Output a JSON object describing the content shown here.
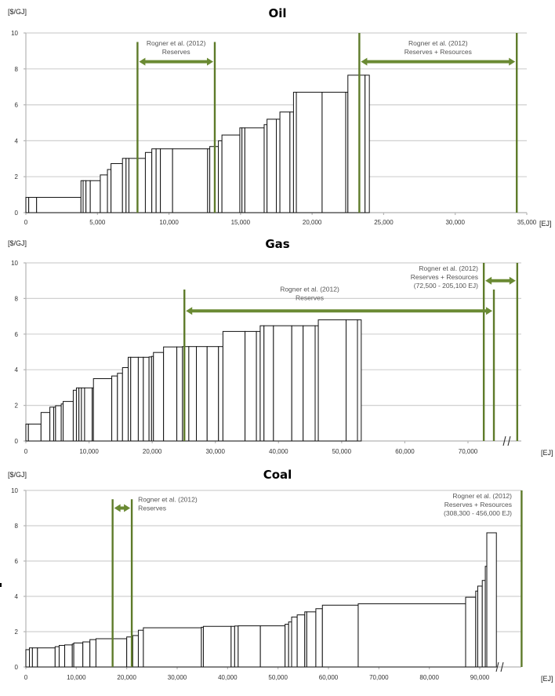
{
  "chart_data": [
    {
      "type": "bar",
      "subtype": "supply-curve (variable-width step bars)",
      "title": "Oil",
      "ylabel": "[$/GJ]",
      "xlabel": "[EJ]",
      "ylim": [
        0,
        10
      ],
      "xlim": [
        0,
        35000
      ],
      "yticks": [
        "0",
        "2",
        "4",
        "6",
        "8",
        "10"
      ],
      "xticks": [
        "0",
        "5,000",
        "10,000",
        "15,000",
        "20,000",
        "25,000",
        "30,000",
        "35,000"
      ],
      "grid": true,
      "axis_break": false,
      "steps": [
        {
          "x0": 0,
          "x1": 200,
          "y": 0.85
        },
        {
          "x0": 200,
          "x1": 750,
          "y": 0.85
        },
        {
          "x0": 750,
          "x1": 3850,
          "y": 0.85
        },
        {
          "x0": 3850,
          "x1": 4000,
          "y": 1.78
        },
        {
          "x0": 4000,
          "x1": 4200,
          "y": 1.78
        },
        {
          "x0": 4200,
          "x1": 4500,
          "y": 1.78
        },
        {
          "x0": 4500,
          "x1": 5200,
          "y": 1.78
        },
        {
          "x0": 5200,
          "x1": 5700,
          "y": 2.1
        },
        {
          "x0": 5700,
          "x1": 5950,
          "y": 2.4
        },
        {
          "x0": 5950,
          "x1": 6750,
          "y": 2.73
        },
        {
          "x0": 6750,
          "x1": 7000,
          "y": 3.02
        },
        {
          "x0": 7000,
          "x1": 7200,
          "y": 3.02
        },
        {
          "x0": 7200,
          "x1": 8350,
          "y": 3.02
        },
        {
          "x0": 8350,
          "x1": 8800,
          "y": 3.35
        },
        {
          "x0": 8800,
          "x1": 9100,
          "y": 3.55
        },
        {
          "x0": 9100,
          "x1": 9400,
          "y": 3.55
        },
        {
          "x0": 9400,
          "x1": 10250,
          "y": 3.55
        },
        {
          "x0": 10250,
          "x1": 12700,
          "y": 3.55
        },
        {
          "x0": 12700,
          "x1": 12850,
          "y": 3.55
        },
        {
          "x0": 12850,
          "x1": 13450,
          "y": 3.68
        },
        {
          "x0": 13450,
          "x1": 13700,
          "y": 4.0
        },
        {
          "x0": 13700,
          "x1": 14950,
          "y": 4.32
        },
        {
          "x0": 14950,
          "x1": 15100,
          "y": 4.72
        },
        {
          "x0": 15100,
          "x1": 15300,
          "y": 4.72
        },
        {
          "x0": 15300,
          "x1": 16650,
          "y": 4.72
        },
        {
          "x0": 16650,
          "x1": 16850,
          "y": 4.9
        },
        {
          "x0": 16850,
          "x1": 17500,
          "y": 5.2
        },
        {
          "x0": 17500,
          "x1": 17750,
          "y": 5.2
        },
        {
          "x0": 17750,
          "x1": 18450,
          "y": 5.6
        },
        {
          "x0": 18450,
          "x1": 18700,
          "y": 5.6
        },
        {
          "x0": 18700,
          "x1": 18900,
          "y": 6.7
        },
        {
          "x0": 18900,
          "x1": 20700,
          "y": 6.7
        },
        {
          "x0": 20700,
          "x1": 22350,
          "y": 6.7
        },
        {
          "x0": 22350,
          "x1": 22500,
          "y": 6.7
        },
        {
          "x0": 22500,
          "x1": 23700,
          "y": 7.65
        },
        {
          "x0": 23700,
          "x1": 24000,
          "y": 7.65
        }
      ],
      "markers": [
        {
          "x": 7800,
          "top": 9.5
        },
        {
          "x": 13200,
          "top": 9.5
        },
        {
          "x": 23300,
          "top": 10
        },
        {
          "x": 34300,
          "top": 10
        }
      ],
      "ranges": [
        {
          "from": 7800,
          "to": 13200,
          "y": 8.4,
          "line1": "Rogner et al. (2012)",
          "line2": "Reserves",
          "line3": "",
          "align": "center"
        },
        {
          "from": 23300,
          "to": 34300,
          "y": 8.4,
          "line1": "Rogner et al. (2012)",
          "line2": "Reserves + Resources",
          "line3": "",
          "align": "center"
        }
      ]
    },
    {
      "type": "bar",
      "subtype": "supply-curve (variable-width step bars)",
      "title": "Gas",
      "ylabel": "[$/GJ]",
      "xlabel": "[EJ]",
      "ylim": [
        0,
        10
      ],
      "xlim": [
        0,
        78000
      ],
      "yticks": [
        "0",
        "2",
        "4",
        "6",
        "8",
        "10"
      ],
      "xticks": [
        "0",
        "10,000",
        "20,000",
        "30,000",
        "40,000",
        "50,000",
        "60,000",
        "70,000"
      ],
      "grid": true,
      "axis_break": true,
      "steps": [
        {
          "x0": 0,
          "x1": 400,
          "y": 0.95
        },
        {
          "x0": 400,
          "x1": 2400,
          "y": 0.95
        },
        {
          "x0": 2400,
          "x1": 3800,
          "y": 1.6
        },
        {
          "x0": 3800,
          "x1": 4400,
          "y": 1.9
        },
        {
          "x0": 4400,
          "x1": 4700,
          "y": 1.9
        },
        {
          "x0": 4700,
          "x1": 5600,
          "y": 1.98
        },
        {
          "x0": 5600,
          "x1": 5900,
          "y": 2.08
        },
        {
          "x0": 5900,
          "x1": 7500,
          "y": 2.22
        },
        {
          "x0": 7500,
          "x1": 8000,
          "y": 2.85
        },
        {
          "x0": 8000,
          "x1": 8400,
          "y": 2.98
        },
        {
          "x0": 8400,
          "x1": 8800,
          "y": 2.98
        },
        {
          "x0": 8800,
          "x1": 9300,
          "y": 2.98
        },
        {
          "x0": 9300,
          "x1": 10500,
          "y": 2.98
        },
        {
          "x0": 10500,
          "x1": 10700,
          "y": 2.98
        },
        {
          "x0": 10700,
          "x1": 13600,
          "y": 3.5
        },
        {
          "x0": 13600,
          "x1": 14500,
          "y": 3.65
        },
        {
          "x0": 14500,
          "x1": 15300,
          "y": 3.8
        },
        {
          "x0": 15300,
          "x1": 16200,
          "y": 4.12
        },
        {
          "x0": 16200,
          "x1": 16600,
          "y": 4.7
        },
        {
          "x0": 16600,
          "x1": 17800,
          "y": 4.7
        },
        {
          "x0": 17800,
          "x1": 18600,
          "y": 4.7
        },
        {
          "x0": 18600,
          "x1": 19500,
          "y": 4.7
        },
        {
          "x0": 19500,
          "x1": 19900,
          "y": 4.72
        },
        {
          "x0": 19900,
          "x1": 20200,
          "y": 4.75
        },
        {
          "x0": 20200,
          "x1": 21800,
          "y": 4.97
        },
        {
          "x0": 21800,
          "x1": 23900,
          "y": 5.28
        },
        {
          "x0": 23900,
          "x1": 24800,
          "y": 5.28
        },
        {
          "x0": 24800,
          "x1": 25800,
          "y": 5.3
        },
        {
          "x0": 25800,
          "x1": 27000,
          "y": 5.3
        },
        {
          "x0": 27000,
          "x1": 28700,
          "y": 5.3
        },
        {
          "x0": 28700,
          "x1": 30500,
          "y": 5.3
        },
        {
          "x0": 30500,
          "x1": 31200,
          "y": 5.3
        },
        {
          "x0": 31200,
          "x1": 34700,
          "y": 6.15
        },
        {
          "x0": 34700,
          "x1": 36500,
          "y": 6.15
        },
        {
          "x0": 36500,
          "x1": 37100,
          "y": 6.15
        },
        {
          "x0": 37100,
          "x1": 37700,
          "y": 6.47
        },
        {
          "x0": 37700,
          "x1": 39200,
          "y": 6.47
        },
        {
          "x0": 39200,
          "x1": 42100,
          "y": 6.47
        },
        {
          "x0": 42100,
          "x1": 43900,
          "y": 6.47
        },
        {
          "x0": 43900,
          "x1": 45800,
          "y": 6.47
        },
        {
          "x0": 45800,
          "x1": 46300,
          "y": 6.47
        },
        {
          "x0": 46300,
          "x1": 50700,
          "y": 6.8
        },
        {
          "x0": 50700,
          "x1": 52500,
          "y": 6.8
        },
        {
          "x0": 52500,
          "x1": 53100,
          "y": 6.8
        }
      ],
      "markers": [
        {
          "x": 25100,
          "top": 8.5
        },
        {
          "x": 74100,
          "top": 8.5
        },
        {
          "x": 72500,
          "top": 10
        },
        {
          "x": 77800,
          "top": 10
        }
      ],
      "ranges": [
        {
          "from": 25100,
          "to": 74100,
          "y": 7.3,
          "line1": "Rogner et al. (2012)",
          "line2": "Reserves",
          "line3": "",
          "align": "center"
        },
        {
          "from": 72500,
          "to": 77800,
          "y": 9.0,
          "line1": "Rogner et al. (2012)",
          "line2": "Reserves + Resources",
          "line3": "(72,500 - 205,100 EJ)",
          "align": "right"
        }
      ]
    },
    {
      "type": "bar",
      "subtype": "supply-curve (variable-width step bars)",
      "title": "Coal",
      "ylabel": "[$/GJ]",
      "xlabel": "[EJ]",
      "ylim": [
        0,
        10
      ],
      "xlim": [
        0,
        98500
      ],
      "yticks": [
        "0",
        "2",
        "4",
        "6",
        "8",
        "10"
      ],
      "xticks": [
        "0",
        "10,000",
        "20,000",
        "30,000",
        "40,000",
        "50,000",
        "60,000",
        "70,000",
        "80,000",
        "90,000"
      ],
      "grid": true,
      "axis_break": true,
      "steps": [
        {
          "x0": 0,
          "x1": 700,
          "y": 0.98
        },
        {
          "x0": 700,
          "x1": 1300,
          "y": 1.08
        },
        {
          "x0": 1300,
          "x1": 2300,
          "y": 1.08
        },
        {
          "x0": 2300,
          "x1": 5800,
          "y": 1.08
        },
        {
          "x0": 5800,
          "x1": 6600,
          "y": 1.15
        },
        {
          "x0": 6600,
          "x1": 7700,
          "y": 1.22
        },
        {
          "x0": 7700,
          "x1": 9200,
          "y": 1.25
        },
        {
          "x0": 9200,
          "x1": 9500,
          "y": 1.3
        },
        {
          "x0": 9500,
          "x1": 11300,
          "y": 1.36
        },
        {
          "x0": 11300,
          "x1": 12700,
          "y": 1.42
        },
        {
          "x0": 12700,
          "x1": 13900,
          "y": 1.55
        },
        {
          "x0": 13900,
          "x1": 20000,
          "y": 1.6
        },
        {
          "x0": 20000,
          "x1": 21200,
          "y": 1.7
        },
        {
          "x0": 21200,
          "x1": 22300,
          "y": 1.78
        },
        {
          "x0": 22300,
          "x1": 23300,
          "y": 2.08
        },
        {
          "x0": 23300,
          "x1": 34800,
          "y": 2.22
        },
        {
          "x0": 34800,
          "x1": 35200,
          "y": 2.25
        },
        {
          "x0": 35200,
          "x1": 40700,
          "y": 2.3
        },
        {
          "x0": 40700,
          "x1": 41400,
          "y": 2.3
        },
        {
          "x0": 41400,
          "x1": 42100,
          "y": 2.32
        },
        {
          "x0": 42100,
          "x1": 46500,
          "y": 2.33
        },
        {
          "x0": 46500,
          "x1": 51400,
          "y": 2.33
        },
        {
          "x0": 51400,
          "x1": 52100,
          "y": 2.42
        },
        {
          "x0": 52100,
          "x1": 52700,
          "y": 2.55
        },
        {
          "x0": 52700,
          "x1": 53800,
          "y": 2.83
        },
        {
          "x0": 53800,
          "x1": 55300,
          "y": 2.95
        },
        {
          "x0": 55300,
          "x1": 55700,
          "y": 3.12
        },
        {
          "x0": 55700,
          "x1": 57500,
          "y": 3.12
        },
        {
          "x0": 57500,
          "x1": 58800,
          "y": 3.3
        },
        {
          "x0": 58800,
          "x1": 65900,
          "y": 3.5
        },
        {
          "x0": 65900,
          "x1": 87200,
          "y": 3.58
        },
        {
          "x0": 87200,
          "x1": 89200,
          "y": 3.95
        },
        {
          "x0": 89200,
          "x1": 89600,
          "y": 4.3
        },
        {
          "x0": 89600,
          "x1": 90500,
          "y": 4.58
        },
        {
          "x0": 90500,
          "x1": 91100,
          "y": 4.9
        },
        {
          "x0": 91100,
          "x1": 91400,
          "y": 5.7
        },
        {
          "x0": 91400,
          "x1": 93300,
          "y": 7.6
        }
      ],
      "markers": [
        {
          "x": 17200,
          "top": 9.5
        },
        {
          "x": 21000,
          "top": 9.5
        },
        {
          "x": 98300,
          "top": 10
        }
      ],
      "ranges": [
        {
          "from": 17200,
          "to": 21000,
          "y": 9.0,
          "line1": "Rogner et al. (2012)",
          "line2": "Reserves",
          "line3": "",
          "align": "left"
        },
        {
          "from": null,
          "to": 98300,
          "y": null,
          "line1": "Rogner et al. (2012)",
          "line2": "Reserves + Resources",
          "line3": "(308,300 - 456,000 EJ)",
          "align": "right"
        }
      ]
    }
  ],
  "colors": {
    "marker": "#5e7b2a",
    "arrow": "#6a8a33",
    "bar_stroke": "#111111",
    "grid": "#d0d0d0"
  }
}
